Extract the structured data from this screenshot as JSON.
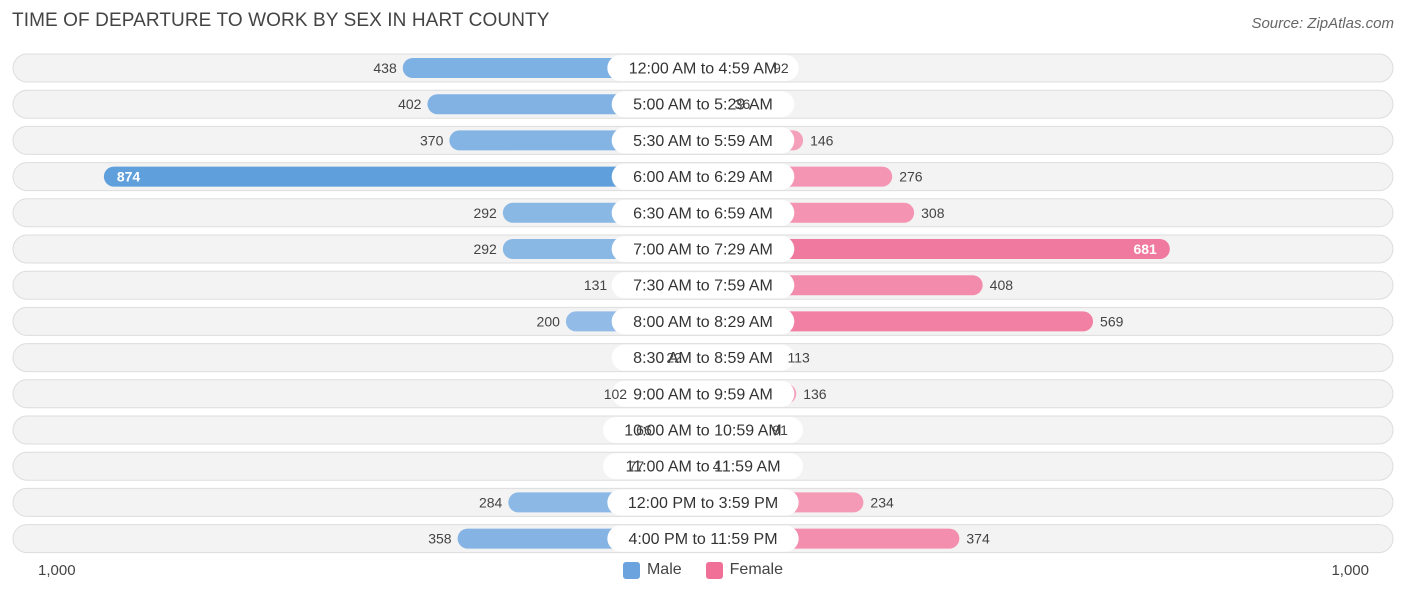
{
  "title": "TIME OF DEPARTURE TO WORK BY SEX IN HART COUNTY",
  "source": "Source: ZipAtlas.com",
  "colors": {
    "male_light": "#a9c9ec",
    "male_dark": "#5f9fdc",
    "female_light": "#f7b0c7",
    "female_dark": "#ef6d96",
    "row_bg": "#f3f3f3",
    "row_border": "#dddddd"
  },
  "axis": {
    "left_label": "1,000",
    "right_label": "1,000"
  },
  "legend": [
    {
      "label": "Male",
      "color": "#6aa3dd"
    },
    {
      "label": "Female",
      "color": "#f07098"
    }
  ],
  "chart_data": {
    "type": "bar",
    "orientation": "horizontal-diverging",
    "title": "TIME OF DEPARTURE TO WORK BY SEX IN HART COUNTY",
    "xlim": [
      -1000,
      1000
    ],
    "categories": [
      "12:00 AM to 4:59 AM",
      "5:00 AM to 5:29 AM",
      "5:30 AM to 5:59 AM",
      "6:00 AM to 6:29 AM",
      "6:30 AM to 6:59 AM",
      "7:00 AM to 7:29 AM",
      "7:30 AM to 7:59 AM",
      "8:00 AM to 8:29 AM",
      "8:30 AM to 8:59 AM",
      "9:00 AM to 9:59 AM",
      "10:00 AM to 10:59 AM",
      "11:00 AM to 11:59 AM",
      "12:00 PM to 3:59 PM",
      "4:00 PM to 11:59 PM"
    ],
    "series": [
      {
        "name": "Male",
        "values": [
          438,
          402,
          370,
          874,
          292,
          292,
          131,
          200,
          22,
          102,
          66,
          77,
          284,
          358
        ]
      },
      {
        "name": "Female",
        "values": [
          92,
          36,
          146,
          276,
          308,
          681,
          408,
          569,
          113,
          136,
          91,
          4,
          234,
          374
        ]
      }
    ]
  }
}
